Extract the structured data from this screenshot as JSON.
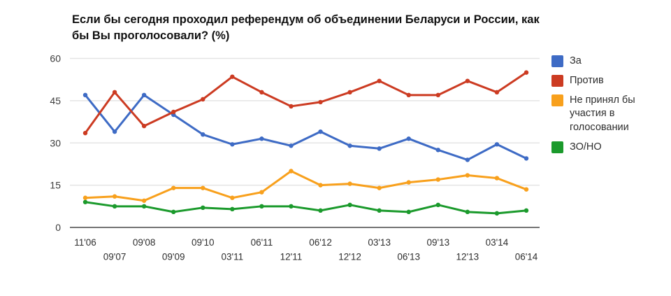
{
  "title": "Если бы сегодня проходил референдум об объединении Беларуси и России, как бы Вы проголосовали? (%)",
  "colors": {
    "background": "#ffffff",
    "gridline": "#e4e4e4",
    "axis_line": "#757575",
    "tick_text": "#333333",
    "title_text": "#111111",
    "legend_text": "#2d2d2d"
  },
  "chart_data": {
    "type": "line",
    "title": "Если бы сегодня проходил референдум об объединении Беларуси и России, как бы Вы проголосовали? (%)",
    "xlabel": "",
    "ylabel": "",
    "ylim": [
      0,
      60
    ],
    "yticks": [
      0,
      15,
      30,
      45,
      60
    ],
    "grid": true,
    "legend_position": "right",
    "x_label_layout": "staggered-two-rows",
    "markers": true,
    "categories": [
      "11'06",
      "09'07",
      "09'08",
      "09'09",
      "09'10",
      "03'11",
      "06'11",
      "12'11",
      "06'12",
      "12'12",
      "03'13",
      "06'13",
      "09'13",
      "12'13",
      "03'14",
      "06'14"
    ],
    "series": [
      {
        "name": "За",
        "color": "#3e6bc5",
        "values": [
          47,
          34,
          47,
          40,
          33,
          29.5,
          31.5,
          29,
          34,
          29,
          28,
          31.5,
          27.5,
          24,
          29.5,
          24.5
        ]
      },
      {
        "name": "Против",
        "color": "#cc3b22",
        "values": [
          33.5,
          48,
          36,
          41,
          45.5,
          53.5,
          48,
          43,
          44.5,
          48,
          52,
          47,
          47,
          52,
          48,
          55
        ]
      },
      {
        "name": "Не принял бы участия в голосовании",
        "color": "#f8a01c",
        "values": [
          10.5,
          11,
          9.5,
          14,
          14,
          10.5,
          12.5,
          20,
          15,
          15.5,
          14,
          16,
          17,
          18.5,
          17.5,
          13.5
        ]
      },
      {
        "name": "ЗО/НО",
        "color": "#1b9a2c",
        "values": [
          9,
          7.5,
          7.5,
          5.5,
          7,
          6.5,
          7.5,
          7.5,
          6,
          8,
          6,
          5.5,
          8,
          5.5,
          5,
          6
        ]
      }
    ]
  }
}
